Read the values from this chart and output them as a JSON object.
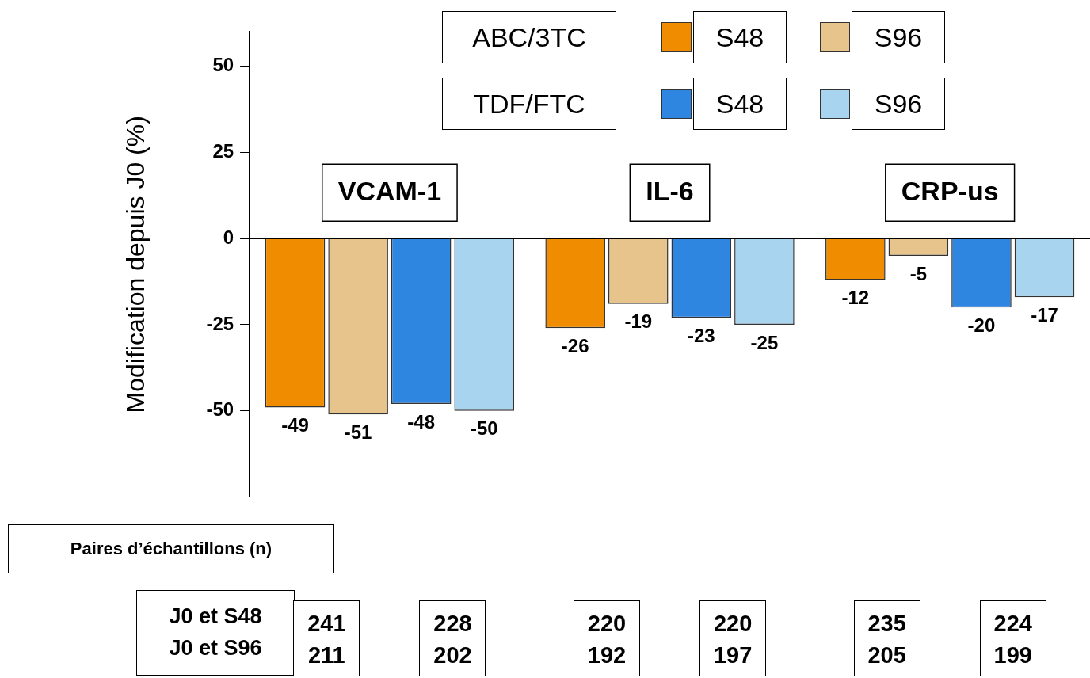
{
  "chart_data": {
    "type": "bar",
    "ylabel": "Modification depuis J0 (%)",
    "categories": [
      "VCAM-1",
      "IL-6",
      "CRP-us"
    ],
    "series": [
      {
        "name": "S48",
        "color": "#f08c00",
        "values": [
          -49,
          -26,
          -12
        ]
      },
      {
        "name": "S96",
        "color": "#e6c48c",
        "values": [
          -51,
          -19,
          -5
        ]
      },
      {
        "name": "S48",
        "color": "#2f86e0",
        "values": [
          -48,
          -23,
          -20
        ]
      },
      {
        "name": "S96",
        "color": "#a9d4f0",
        "values": [
          -50,
          -25,
          -17
        ]
      }
    ],
    "ylim": [
      -75,
      60
    ],
    "yticks": [
      {
        "value": -75,
        "label": null
      },
      {
        "value": -50,
        "label": "-50"
      },
      {
        "value": -25,
        "label": "-25"
      },
      0,
      25,
      50
    ],
    "data_labels": true,
    "grid": false,
    "legend": "top right",
    "annotations": [
      "ABC/3TC",
      "TDF/FTC",
      "Paires d’échantillons (n)",
      "J0 et S48",
      "J0 et S96",
      "241",
      "211",
      "228",
      "202",
      "220",
      "192",
      "220",
      "197",
      "235",
      "205",
      "224",
      "199"
    ]
  }
}
